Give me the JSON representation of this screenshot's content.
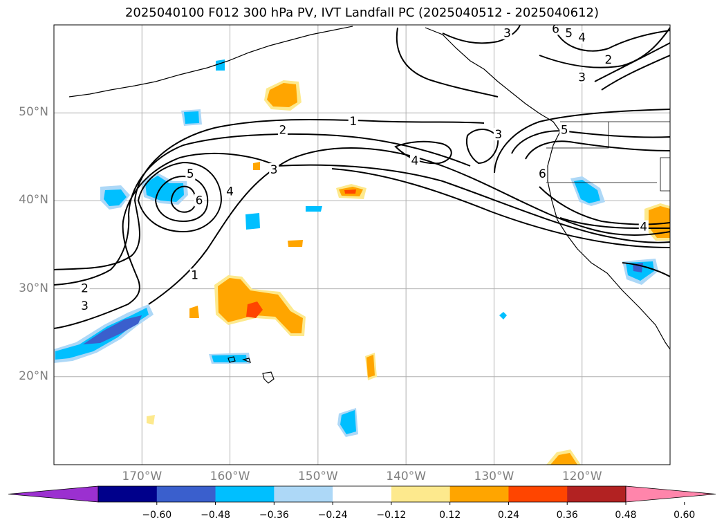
{
  "title": "2025040100 F012 300 hPa PV, IVT Landfall PC (2025040512 - 2025040612)",
  "chart_data": {
    "type": "map",
    "projection": "plate-carree",
    "lon_range": [
      -180,
      -110
    ],
    "lat_range": [
      10,
      60
    ],
    "grid": true,
    "lat_ticks": [
      {
        "value": 50,
        "label": "50°N"
      },
      {
        "value": 40,
        "label": "40°N"
      },
      {
        "value": 30,
        "label": "30°N"
      },
      {
        "value": 20,
        "label": "20°N"
      }
    ],
    "lon_ticks": [
      {
        "value": -170,
        "label": "170°W"
      },
      {
        "value": -160,
        "label": "160°W"
      },
      {
        "value": -150,
        "label": "150°W"
      },
      {
        "value": -140,
        "label": "140°W"
      },
      {
        "value": -130,
        "label": "130°W"
      },
      {
        "value": -120,
        "label": "120°W"
      }
    ],
    "pv_contour_labels": [
      {
        "text": "1",
        "lon": -146,
        "lat": 49
      },
      {
        "text": "2",
        "lon": -154,
        "lat": 48
      },
      {
        "text": "3",
        "lon": -155,
        "lat": 43.5
      },
      {
        "text": "4",
        "lon": -139,
        "lat": 44.5
      },
      {
        "text": "5",
        "lon": -164.5,
        "lat": 43
      },
      {
        "text": "6",
        "lon": -163.5,
        "lat": 40
      },
      {
        "text": "4",
        "lon": -160,
        "lat": 41
      },
      {
        "text": "1",
        "lon": -164,
        "lat": 31.5
      },
      {
        "text": "2",
        "lon": -176.5,
        "lat": 30
      },
      {
        "text": "3",
        "lon": -176.5,
        "lat": 28
      },
      {
        "text": "3",
        "lon": -129.5,
        "lat": 47.5
      },
      {
        "text": "3",
        "lon": -128.5,
        "lat": 59
      },
      {
        "text": "6",
        "lon": -123,
        "lat": 59.5
      },
      {
        "text": "5",
        "lon": -121.5,
        "lat": 59
      },
      {
        "text": "4",
        "lon": -120,
        "lat": 58.5
      },
      {
        "text": "2",
        "lon": -117,
        "lat": 56
      },
      {
        "text": "3",
        "lon": -120,
        "lat": 54
      },
      {
        "text": "5",
        "lon": -122,
        "lat": 48
      },
      {
        "text": "6",
        "lon": -124.5,
        "lat": 43
      },
      {
        "text": "4",
        "lon": -113,
        "lat": 37
      }
    ],
    "ivt_shading": {
      "levels": [
        -0.6,
        -0.48,
        -0.36,
        -0.24,
        -0.12,
        0.12,
        0.24,
        0.36,
        0.48,
        0.6
      ],
      "colors": [
        "#9b30d0",
        "#00008b",
        "#3a5fcd",
        "#00bfff",
        "#add8f7",
        "#ffffff",
        "#fde98d",
        "#ffa500",
        "#ff4500",
        "#b22222",
        "#ff85ab"
      ],
      "tick_labels": [
        "−0.60",
        "−0.48",
        "−0.36",
        "−0.24",
        "−0.12",
        "0.12",
        "0.24",
        "0.36",
        "0.48",
        "0.60"
      ],
      "extend": "both"
    }
  }
}
